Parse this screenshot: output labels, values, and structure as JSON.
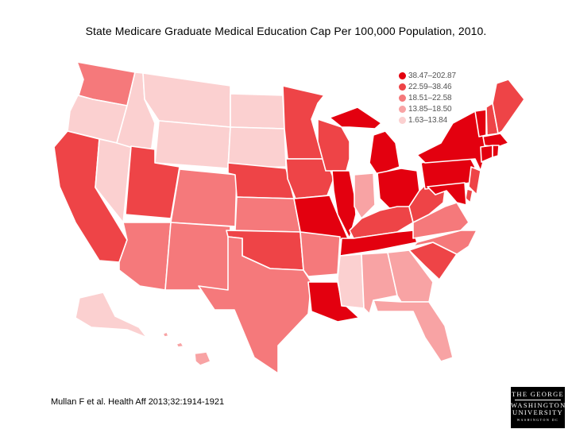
{
  "title": "State Medicare Graduate Medical Education Cap Per 100,000 Population, 2010.",
  "citation": "Mullan F et al. Health Aff 2013;32:1914-1921",
  "logo": {
    "line1": "THE GEORGE",
    "line2": "WASHINGTON",
    "line3": "UNIVERSITY",
    "line4": "WASHINGTON DC"
  },
  "legend": [
    {
      "label": "38.47–202.87",
      "color": "#e3000f"
    },
    {
      "label": "22.59–38.46",
      "color": "#ee4447"
    },
    {
      "label": "18.51–22.58",
      "color": "#f5797b"
    },
    {
      "label": "13.85–18.50",
      "color": "#f8a3a4"
    },
    {
      "label": "1.63–13.84",
      "color": "#fbd0d0"
    }
  ],
  "state_class": {
    "WA": 2,
    "OR": 4,
    "ID": 4,
    "MT": 4,
    "WY": 4,
    "ND": 4,
    "SD": 4,
    "NV": 4,
    "AK": 4,
    "MS": 4,
    "CA": 1,
    "UT": 1,
    "WI": 1,
    "IA": 1,
    "KY": 1,
    "WV": 1,
    "SC": 1,
    "OK": 1,
    "ME": 1,
    "DE": 1,
    "VA": 2,
    "NC": 2,
    "CO": 2,
    "KS": 2,
    "AZ": 2,
    "NM": 2,
    "TX": 2,
    "AR": 2,
    "NE": 1,
    "MN": 1,
    "IN": 3,
    "AL": 3,
    "GA": 3,
    "FL": 3,
    "HI": 3,
    "MO": 0,
    "IL": 0,
    "TN": 0,
    "LA": 0,
    "OH": 0,
    "MI": 0,
    "PA": 0,
    "NY": 0,
    "VT": 0,
    "NH": 1,
    "MA": 0,
    "CT": 0,
    "RI": 0,
    "NJ": 1,
    "MD": 0
  }
}
